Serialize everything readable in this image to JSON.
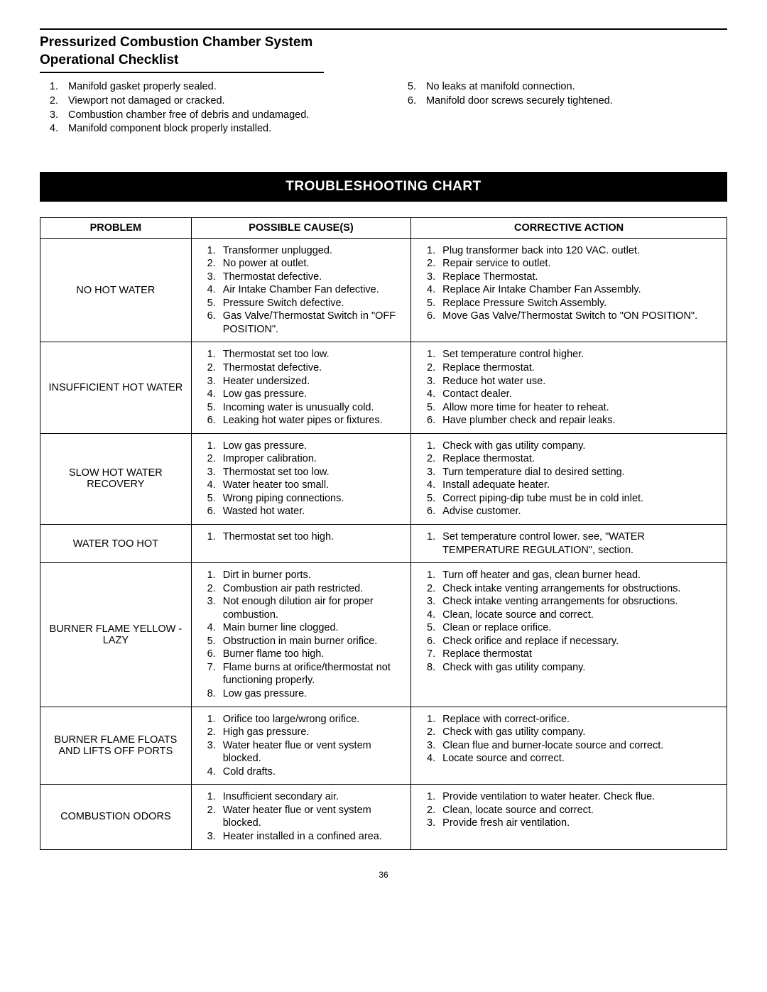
{
  "section": {
    "title_line1": "Pressurized Combustion Chamber System",
    "title_line2": "Operational Checklist",
    "left_items": [
      "Manifold gasket properly sealed.",
      "Viewport not damaged or cracked.",
      "Combustion chamber free of debris and undamaged.",
      "Manifold component block properly installed."
    ],
    "right_start": 5,
    "right_items": [
      "No leaks at manifold connection.",
      "Manifold door screws securely tightened."
    ]
  },
  "chart": {
    "heading": "TROUBLESHOOTING CHART",
    "columns": [
      "PROBLEM",
      "POSSIBLE CAUSE(S)",
      "CORRECTIVE ACTION"
    ],
    "rows": [
      {
        "problem": "NO HOT WATER",
        "causes": [
          "Transformer unplugged.",
          "No power at outlet.",
          "Thermostat defective.",
          "Air Intake Chamber Fan defective.",
          "Pressure Switch defective.",
          "Gas Valve/Thermostat Switch in \"OFF POSITION\"."
        ],
        "actions": [
          "Plug transformer back into 120 VAC. outlet.",
          "Repair service to outlet.",
          "Replace Thermostat.",
          "Replace Air Intake Chamber Fan Assembly.",
          "Replace Pressure Switch Assembly.",
          "Move Gas Valve/Thermostat Switch to \"ON POSITION\"."
        ]
      },
      {
        "problem": "INSUFFICIENT HOT WATER",
        "causes": [
          "Thermostat set too low.",
          "Thermostat defective.",
          "Heater undersized.",
          "Low gas pressure.",
          "Incoming water is unusually cold.",
          "Leaking hot water pipes or fixtures."
        ],
        "actions": [
          "Set temperature control higher.",
          "Replace thermostat.",
          "Reduce hot water use.",
          "Contact dealer.",
          "Allow more time for heater to reheat.",
          "Have plumber check and repair leaks."
        ]
      },
      {
        "problem": "SLOW HOT WATER RECOVERY",
        "tall": true,
        "causes": [
          "Low gas pressure.",
          "Improper calibration.",
          "Thermostat set too low.",
          "Water heater too small.",
          "Wrong piping connections.",
          "Wasted hot water."
        ],
        "actions": [
          "Check with gas utility company.",
          "Replace thermostat.",
          "Turn temperature dial to desired setting.",
          "Install adequate heater.",
          "Correct piping-dip tube must be in cold inlet.",
          "Advise customer."
        ]
      },
      {
        "problem": "WATER TOO HOT",
        "causes": [
          "Thermostat set too high."
        ],
        "actions": [
          "Set temperature control lower. see, \"WATER TEMPERATURE REGULATION\", section."
        ]
      },
      {
        "problem": "BURNER FLAME YELLOW - LAZY",
        "causes": [
          "Dirt in burner ports.",
          "Combustion air path restricted.",
          "Not enough dilution air for proper combustion.",
          "Main burner line clogged.",
          "Obstruction in main burner orifice.",
          "Burner flame too high.",
          "Flame burns at orifice/thermostat not functioning properly.",
          "Low gas pressure."
        ],
        "actions": [
          "Turn off heater and gas, clean burner head.",
          "Check intake venting arrangements for obstructions.",
          "Check intake venting arrangements for obsructions.",
          "Clean, locate source and correct.",
          "Clean or replace orifice.",
          "Check orifice and replace if necessary.",
          "Replace thermostat",
          "Check with gas utility company."
        ]
      },
      {
        "problem": "BURNER FLAME FLOATS AND LIFTS OFF PORTS",
        "tall": true,
        "causes": [
          "Orifice too large/wrong orifice.",
          "High gas pressure.",
          "Water heater flue or vent system blocked.",
          "Cold drafts."
        ],
        "actions": [
          "Replace with correct-orifice.",
          "Check with gas utility company.",
          "Clean flue and burner-locate source and correct.",
          "Locate source and correct."
        ]
      },
      {
        "problem": "COMBUSTION ODORS",
        "tall": true,
        "causes": [
          "Insufficient secondary air.",
          "Water heater flue or vent system blocked.",
          "Heater installed in a confined area."
        ],
        "actions": [
          "Provide ventilation to water heater. Check flue.",
          "Clean, locate source and correct.",
          "Provide fresh air ventilation."
        ]
      }
    ]
  },
  "page_number": "36"
}
